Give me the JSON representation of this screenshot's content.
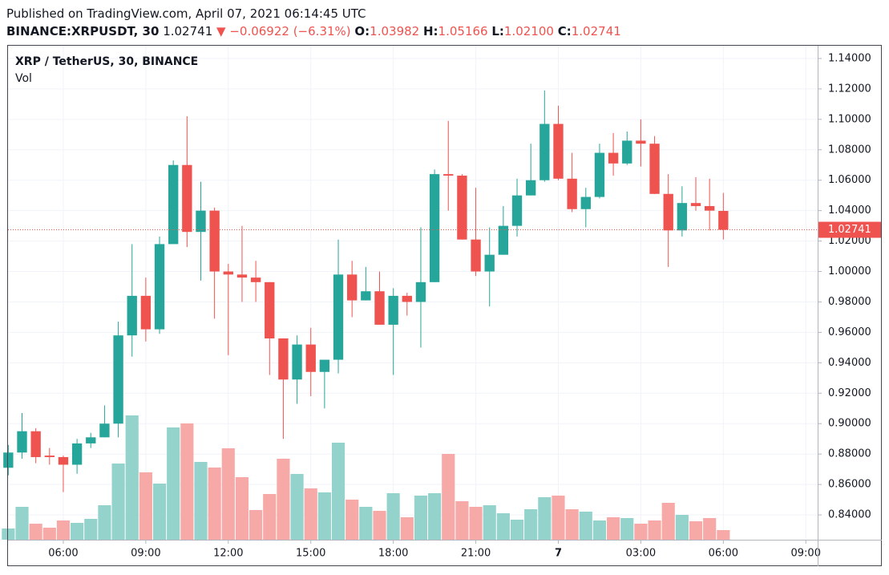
{
  "header": {
    "published": "Published on TradingView.com, April 07, 2021 06:14:45 UTC",
    "symbol": "BINANCE:XRPUSDT, 30",
    "last": "1.02741",
    "arrow": "▼",
    "change": "−0.06922 (−6.31%)",
    "o_label": "O:",
    "o": "1.03982",
    "h_label": "H:",
    "h": "1.05166",
    "l_label": "L:",
    "l": "1.02100",
    "c_label": "C:",
    "c": "1.02741"
  },
  "chart_data": {
    "type": "candlestick",
    "title": "XRP / TetherUS, 30, BINANCE",
    "volume_label": "Vol",
    "x": [
      4,
      4.5,
      5,
      5.5,
      6,
      6.5,
      7,
      7.5,
      8,
      8.5,
      9,
      9.5,
      10,
      10.5,
      11,
      11.5,
      12,
      12.5,
      13,
      13.5,
      14,
      14.5,
      15,
      15.5,
      16,
      16.5,
      17,
      17.5,
      18,
      18.5,
      19,
      19.5,
      20,
      20.5,
      21,
      21.5,
      22,
      22.5,
      23,
      23.5,
      24,
      24.5,
      25,
      25.5,
      26,
      26.5,
      27,
      27.5,
      28,
      28.5,
      29,
      29.5,
      30
    ],
    "open": [
      0.871,
      0.881,
      0.895,
      0.879,
      0.878,
      0.873,
      0.887,
      0.891,
      0.9,
      0.958,
      0.984,
      0.962,
      1.018,
      1.07,
      1.026,
      1.04,
      1.0,
      0.998,
      0.996,
      0.993,
      0.956,
      0.929,
      0.952,
      0.934,
      0.942,
      0.998,
      0.981,
      0.987,
      0.965,
      0.984,
      0.98,
      0.993,
      1.064,
      1.063,
      1.021,
      1.0,
      1.011,
      1.03,
      1.05,
      1.06,
      1.097,
      1.061,
      1.041,
      1.049,
      1.078,
      1.071,
      1.086,
      1.084,
      1.051,
      1.027,
      1.045,
      1.043,
      1.03982
    ],
    "high": [
      0.886,
      0.907,
      0.897,
      0.884,
      0.879,
      0.89,
      0.894,
      0.912,
      0.967,
      1.018,
      0.996,
      1.023,
      1.073,
      1.102,
      1.059,
      1.042,
      1.005,
      1.03,
      1.007,
      0.993,
      0.956,
      0.958,
      0.963,
      0.942,
      1.021,
      1.007,
      1.003,
      1.0,
      0.989,
      0.986,
      1.029,
      1.067,
      1.099,
      1.064,
      1.055,
      1.029,
      1.043,
      1.061,
      1.084,
      1.119,
      1.109,
      1.078,
      1.055,
      1.084,
      1.091,
      1.092,
      1.1,
      1.089,
      1.064,
      1.056,
      1.062,
      1.061,
      1.05166
    ],
    "low": [
      0.866,
      0.877,
      0.874,
      0.873,
      0.855,
      0.867,
      0.884,
      0.891,
      0.891,
      0.944,
      0.954,
      0.959,
      1.019,
      1.016,
      0.994,
      0.969,
      0.945,
      0.98,
      0.98,
      0.932,
      0.89,
      0.913,
      0.918,
      0.91,
      0.933,
      0.97,
      0.981,
      0.965,
      0.932,
      0.971,
      0.95,
      0.993,
      1.04,
      1.021,
      0.997,
      0.977,
      1.011,
      1.023,
      1.05,
      1.059,
      1.06,
      1.039,
      1.029,
      1.048,
      1.063,
      1.07,
      1.069,
      1.051,
      1.003,
      1.023,
      1.04,
      1.027,
      1.021
    ],
    "close": [
      0.881,
      0.895,
      0.878,
      0.878,
      0.873,
      0.887,
      0.891,
      0.9,
      0.958,
      0.984,
      0.962,
      1.018,
      1.07,
      1.026,
      1.04,
      1.0,
      0.998,
      0.996,
      0.993,
      0.956,
      0.929,
      0.952,
      0.934,
      0.942,
      0.998,
      0.981,
      0.987,
      0.965,
      0.984,
      0.98,
      0.993,
      1.064,
      1.063,
      1.021,
      1.0,
      1.011,
      1.03,
      1.05,
      1.06,
      1.097,
      1.061,
      1.041,
      1.049,
      1.078,
      1.071,
      1.086,
      1.084,
      1.051,
      1.027,
      1.045,
      1.043,
      1.04,
      1.02741
    ],
    "volume": [
      14,
      41,
      20,
      15,
      24,
      21,
      26,
      43,
      95,
      155,
      84,
      70,
      140,
      145,
      97,
      90,
      114,
      78,
      37,
      57,
      101,
      82,
      64,
      59,
      121,
      50,
      41,
      36,
      58,
      28,
      55,
      58,
      107,
      48,
      41,
      43,
      33,
      25,
      38,
      53,
      55,
      38,
      35,
      24,
      28,
      27,
      20,
      24,
      46,
      31,
      23,
      27,
      12
    ],
    "up_color": "#26a69a",
    "down_color": "#ef5350",
    "up_volume_color": "#93d3cc",
    "down_volume_color": "#f7a9a7",
    "last_price": {
      "value": 1.02741,
      "label": "1.02741"
    },
    "xlim": [
      3.99,
      33.43
    ],
    "xticks": [
      {
        "value": 6,
        "label": "06:00"
      },
      {
        "value": 9,
        "label": "09:00"
      },
      {
        "value": 12,
        "label": "12:00"
      },
      {
        "value": 15,
        "label": "15:00"
      },
      {
        "value": 18,
        "label": "18:00"
      },
      {
        "value": 21,
        "label": "21:00"
      },
      {
        "value": 24,
        "label": "7"
      },
      {
        "value": 27,
        "label": "03:00"
      },
      {
        "value": 30,
        "label": "06:00"
      },
      {
        "value": 33,
        "label": "09:00"
      }
    ],
    "ylim": [
      0.8237,
      1.1484
    ],
    "yticks": [
      {
        "value": 0.84,
        "label": "0.84000"
      },
      {
        "value": 0.86,
        "label": "0.86000"
      },
      {
        "value": 0.88,
        "label": "0.88000"
      },
      {
        "value": 0.9,
        "label": "0.90000"
      },
      {
        "value": 0.92,
        "label": "0.92000"
      },
      {
        "value": 0.94,
        "label": "0.94000"
      },
      {
        "value": 0.96,
        "label": "0.96000"
      },
      {
        "value": 0.98,
        "label": "0.98000"
      },
      {
        "value": 1.0,
        "label": "1.00000"
      },
      {
        "value": 1.02,
        "label": "1.02000"
      },
      {
        "value": 1.04,
        "label": "1.04000"
      },
      {
        "value": 1.06,
        "label": "1.06000"
      },
      {
        "value": 1.08,
        "label": "1.08000"
      },
      {
        "value": 1.1,
        "label": "1.10000"
      },
      {
        "value": 1.12,
        "label": "1.12000"
      },
      {
        "value": 1.14,
        "label": "1.14000"
      }
    ],
    "grid": true
  }
}
